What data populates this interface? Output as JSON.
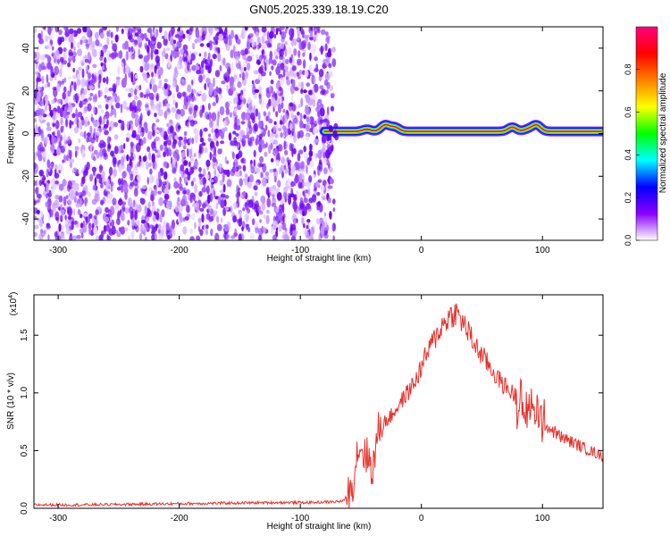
{
  "figure": {
    "title": "GN05.2025.339.18.19.C20"
  },
  "chart_data": [
    {
      "type": "heatmap",
      "xlabel": "Height of straight line (km)",
      "ylabel": "Frequency (Hz)",
      "xlim": [
        -320,
        150
      ],
      "ylim": [
        -50,
        50
      ],
      "xticks": [
        -300,
        -200,
        -100,
        0,
        100
      ],
      "yticks": [
        -40,
        -20,
        0,
        20,
        40
      ],
      "noise_region_x": [
        -320,
        -75
      ],
      "signal_ridge": {
        "x_range": [
          -80,
          150
        ],
        "frequency": 1,
        "bumps": [
          {
            "x": -45,
            "frequency": 2
          },
          {
            "x": -30,
            "frequency": 4
          },
          {
            "x": -22,
            "frequency": 3
          },
          {
            "x": 75,
            "frequency": 3
          },
          {
            "x": 88,
            "frequency": 2
          },
          {
            "x": 95,
            "frequency": 4
          }
        ]
      },
      "colorbar": {
        "label": "Normalized spectral amplitude",
        "ticks": [
          0.0,
          0.2,
          0.4,
          0.6,
          0.8
        ],
        "range": [
          0,
          1
        ],
        "colors": [
          "#ffffff",
          "#8b00ff",
          "#0000ff",
          "#00ffff",
          "#00ff00",
          "#ffff00",
          "#ff8000",
          "#ff0000",
          "#ff0080"
        ]
      }
    },
    {
      "type": "line",
      "xlabel": "Height of straight line (km)",
      "ylabel": "SNR (10 * v/v)",
      "scale_label": "(x10",
      "scale_exp": "4",
      "scale_close": ")",
      "xlim": [
        -320,
        150
      ],
      "ylim": [
        0,
        1.85
      ],
      "xticks": [
        -300,
        -200,
        -100,
        0,
        100
      ],
      "yticks": [
        0.0,
        0.5,
        1.0,
        1.5
      ],
      "ytick_labels": [
        "0.0",
        "0.5",
        "1.0",
        "1.5"
      ],
      "color": "#e8302a",
      "x": [
        -320,
        -280,
        -240,
        -200,
        -160,
        -120,
        -90,
        -65,
        -58,
        -52,
        -45,
        -40,
        -35,
        -25,
        -15,
        -5,
        5,
        15,
        22,
        28,
        35,
        45,
        55,
        65,
        75,
        85,
        95,
        105,
        115,
        125,
        135,
        150
      ],
      "y": [
        0.03,
        0.03,
        0.035,
        0.04,
        0.045,
        0.05,
        0.05,
        0.06,
        0.15,
        0.55,
        0.45,
        0.35,
        0.7,
        0.8,
        0.95,
        1.1,
        1.35,
        1.55,
        1.65,
        1.7,
        1.6,
        1.4,
        1.25,
        1.1,
        1.0,
        0.9,
        0.8,
        0.7,
        0.62,
        0.57,
        0.52,
        0.45
      ]
    }
  ]
}
